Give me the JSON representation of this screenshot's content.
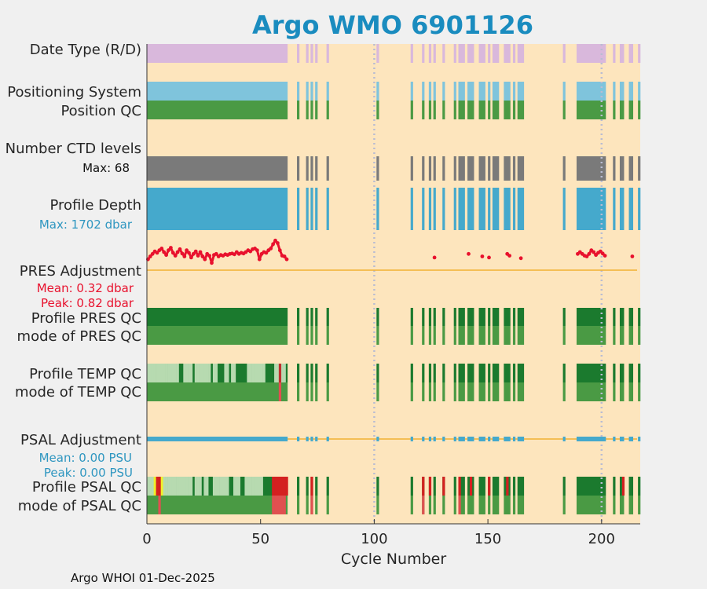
{
  "chart_data": {
    "type": "bar",
    "title": "Argo WMO 6901126",
    "xlabel": "Cycle Number",
    "xlim": [
      0,
      217
    ],
    "xticks": [
      0,
      50,
      100,
      150,
      200
    ],
    "vlines": [
      100,
      200
    ],
    "footer": "Argo WHOI 01-Dec-2025",
    "cycles_present": [
      [
        0,
        48
      ],
      [
        49,
        61
      ],
      66,
      70,
      72,
      74,
      79,
      101,
      116,
      121,
      124,
      126,
      130,
      135,
      [
        137,
        139
      ],
      [
        141,
        143
      ],
      [
        146,
        148
      ],
      150,
      [
        152,
        154
      ],
      [
        157,
        159
      ],
      161,
      [
        163,
        165
      ],
      183,
      [
        189,
        201
      ],
      205,
      [
        208,
        209
      ],
      [
        212,
        213
      ],
      216
    ],
    "rows": {
      "data_type": {
        "label": "Date Type (R/D)",
        "color": "#d9b8dc"
      },
      "positioning_system": {
        "label": "Positioning System",
        "color": "#7fc4dc"
      },
      "position_qc": {
        "label": "Position QC",
        "color": "#4a9a44"
      },
      "n_levels": {
        "label": "Number CTD levels",
        "max_text": "Max: 68",
        "max": 68,
        "color": "#7a7a7a"
      },
      "profile_depth": {
        "label": "Profile Depth",
        "max_text": "Max: 1702 dbar",
        "max": 1702,
        "unit": "dbar",
        "color": "#45a9cc",
        "text_color": "#2e96c0"
      },
      "pres_adjustment": {
        "label": "PRES Adjustment",
        "mean_text": "Mean: 0.32 dbar",
        "peak_text": "Peak: 0.82 dbar",
        "mean": 0.32,
        "peak": 0.82,
        "color": "#e8112d"
      },
      "profile_pres_qc": {
        "label": "Profile PRES QC",
        "color": "#1b7a2e"
      },
      "mode_pres_qc": {
        "label": "mode of PRES QC",
        "color": "#4a9a44"
      },
      "profile_temp_qc": {
        "label": "Profile TEMP QC",
        "color": "#1b7a2e",
        "light_color": "#b7dab0"
      },
      "mode_temp_qc": {
        "label": "mode of TEMP QC",
        "color": "#4a9a44",
        "bad_color": "#e05050"
      },
      "psal_adjustment": {
        "label": "PSAL Adjustment",
        "mean_text": "Mean: 0.00 PSU",
        "peak_text": "Peak: 0.00 PSU",
        "mean": 0.0,
        "peak": 0.0,
        "color": "#45a9cc"
      },
      "profile_psal_qc": {
        "label": "Profile PSAL QC",
        "color": "#1b7a2e",
        "light_color": "#b7dab0",
        "bad_color": "#d42020",
        "yellow_color": "#f0f02a"
      },
      "mode_psal_qc": {
        "label": "mode of PSAL QC",
        "color": "#4a9a44",
        "bad_color": "#e05050"
      }
    },
    "pres_adjustment_points": [
      [
        0,
        0.3
      ],
      [
        1,
        0.38
      ],
      [
        2,
        0.45
      ],
      [
        3,
        0.52
      ],
      [
        4,
        0.48
      ],
      [
        5,
        0.55
      ],
      [
        6,
        0.6
      ],
      [
        7,
        0.5
      ],
      [
        8,
        0.42
      ],
      [
        9,
        0.55
      ],
      [
        10,
        0.62
      ],
      [
        11,
        0.48
      ],
      [
        12,
        0.4
      ],
      [
        13,
        0.5
      ],
      [
        14,
        0.58
      ],
      [
        15,
        0.46
      ],
      [
        16,
        0.38
      ],
      [
        17,
        0.55
      ],
      [
        18,
        0.48
      ],
      [
        19,
        0.35
      ],
      [
        20,
        0.45
      ],
      [
        21,
        0.52
      ],
      [
        22,
        0.4
      ],
      [
        23,
        0.5
      ],
      [
        24,
        0.38
      ],
      [
        25,
        0.3
      ],
      [
        26,
        0.45
      ],
      [
        27,
        0.4
      ],
      [
        28,
        0.2
      ],
      [
        29,
        0.42
      ],
      [
        30,
        0.45
      ],
      [
        31,
        0.38
      ],
      [
        32,
        0.42
      ],
      [
        33,
        0.4
      ],
      [
        34,
        0.44
      ],
      [
        35,
        0.42
      ],
      [
        36,
        0.45
      ],
      [
        37,
        0.46
      ],
      [
        38,
        0.44
      ],
      [
        39,
        0.5
      ],
      [
        40,
        0.45
      ],
      [
        41,
        0.48
      ],
      [
        42,
        0.46
      ],
      [
        43,
        0.5
      ],
      [
        44,
        0.55
      ],
      [
        45,
        0.52
      ],
      [
        46,
        0.58
      ],
      [
        47,
        0.6
      ],
      [
        48,
        0.55
      ],
      [
        49,
        0.3
      ],
      [
        50,
        0.45
      ],
      [
        51,
        0.5
      ],
      [
        52,
        0.48
      ],
      [
        53,
        0.55
      ],
      [
        54,
        0.6
      ],
      [
        55,
        0.72
      ],
      [
        56,
        0.82
      ],
      [
        57,
        0.75
      ],
      [
        58,
        0.55
      ],
      [
        59,
        0.4
      ],
      [
        60,
        0.38
      ],
      [
        61,
        0.3
      ],
      [
        126,
        0.35
      ],
      [
        141,
        0.45
      ],
      [
        147,
        0.38
      ],
      [
        150,
        0.35
      ],
      [
        158,
        0.45
      ],
      [
        159,
        0.4
      ],
      [
        164,
        0.33
      ],
      [
        189,
        0.45
      ],
      [
        190,
        0.5
      ],
      [
        191,
        0.45
      ],
      [
        192,
        0.4
      ],
      [
        193,
        0.38
      ],
      [
        194,
        0.45
      ],
      [
        195,
        0.55
      ],
      [
        196,
        0.5
      ],
      [
        197,
        0.42
      ],
      [
        198,
        0.48
      ],
      [
        199,
        0.52
      ],
      [
        200,
        0.46
      ],
      [
        201,
        0.4
      ],
      [
        213,
        0.38
      ]
    ],
    "temp_qc_light_cycles": [
      [
        0,
        13
      ],
      [
        16,
        19
      ],
      [
        21,
        27
      ],
      [
        29,
        30
      ],
      [
        34,
        35
      ],
      [
        37,
        38
      ],
      [
        44,
        48
      ],
      [
        49,
        51
      ],
      [
        56,
        57
      ],
      [
        59,
        60
      ]
    ],
    "temp_qc_bad_cycles": [
      58
    ],
    "psal_qc_light_cycles": [
      [
        0,
        2
      ],
      [
        7,
        19
      ],
      [
        21,
        23
      ],
      [
        25,
        26
      ],
      [
        29,
        35
      ],
      [
        38,
        40
      ],
      [
        43,
        48
      ],
      [
        49,
        50
      ]
    ],
    "psal_qc_yellow_cycles": [
      3,
      6
    ],
    "psal_qc_bad_cycles": [
      4,
      5,
      55,
      56,
      57,
      58,
      59,
      60,
      61,
      72,
      121,
      124,
      130,
      137,
      142,
      150,
      158,
      209
    ]
  }
}
